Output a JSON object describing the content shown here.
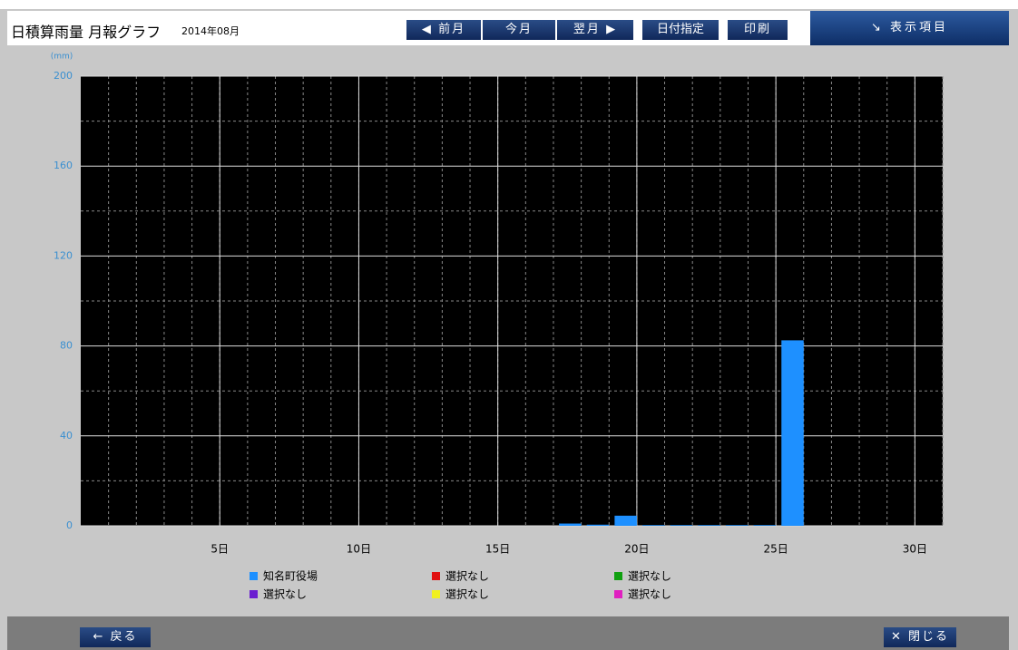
{
  "header": {
    "title": "日積算雨量 月報グラフ",
    "period": "2014年08月",
    "buttons": [
      "前月",
      "今月",
      "翌月",
      "日付指定",
      "印刷"
    ],
    "menu": "表示項目"
  },
  "chart_data": {
    "type": "bar",
    "y_unit": "(mm)",
    "x": [
      1,
      2,
      3,
      4,
      5,
      6,
      7,
      8,
      9,
      10,
      11,
      12,
      13,
      14,
      15,
      16,
      17,
      18,
      19,
      20,
      21,
      22,
      23,
      24,
      25,
      26,
      27,
      28,
      29,
      30,
      31
    ],
    "xlim": [
      0,
      31
    ],
    "xticks": [
      {
        "value": 5,
        "label": "5日"
      },
      {
        "value": 10,
        "label": "10日"
      },
      {
        "value": 15,
        "label": "15日"
      },
      {
        "value": 20,
        "label": "20日"
      },
      {
        "value": 25,
        "label": "25日"
      },
      {
        "value": 30,
        "label": "30日"
      }
    ],
    "ylim": [
      0,
      200
    ],
    "yticks": [
      0,
      40,
      80,
      120,
      160,
      200
    ],
    "yminor": [
      20,
      60,
      100,
      140,
      180
    ],
    "grid": true,
    "series": [
      {
        "name": "知名町役場",
        "color": "#1e90ff",
        "values": [
          0,
          0,
          0,
          0,
          0,
          0,
          0,
          0,
          0,
          0,
          0,
          0,
          0,
          0,
          0,
          0,
          1,
          0.5,
          4.5,
          0.3,
          0.3,
          0.3,
          0.3,
          0.3,
          82.5,
          0,
          0,
          0,
          0,
          0,
          0
        ]
      },
      {
        "name": "選択なし",
        "color": "#e01010",
        "values": [
          null,
          null,
          null,
          null,
          null,
          null,
          null,
          null,
          null,
          null,
          null,
          null,
          null,
          null,
          null,
          null,
          null,
          null,
          null,
          null,
          null,
          null,
          null,
          null,
          null,
          null,
          null,
          null,
          null,
          null,
          null
        ]
      },
      {
        "name": "選択なし",
        "color": "#10a010",
        "values": [
          null,
          null,
          null,
          null,
          null,
          null,
          null,
          null,
          null,
          null,
          null,
          null,
          null,
          null,
          null,
          null,
          null,
          null,
          null,
          null,
          null,
          null,
          null,
          null,
          null,
          null,
          null,
          null,
          null,
          null,
          null
        ]
      },
      {
        "name": "選択なし",
        "color": "#6a1ed0",
        "values": [
          null,
          null,
          null,
          null,
          null,
          null,
          null,
          null,
          null,
          null,
          null,
          null,
          null,
          null,
          null,
          null,
          null,
          null,
          null,
          null,
          null,
          null,
          null,
          null,
          null,
          null,
          null,
          null,
          null,
          null,
          null
        ]
      },
      {
        "name": "選択なし",
        "color": "#f0f020",
        "values": [
          null,
          null,
          null,
          null,
          null,
          null,
          null,
          null,
          null,
          null,
          null,
          null,
          null,
          null,
          null,
          null,
          null,
          null,
          null,
          null,
          null,
          null,
          null,
          null,
          null,
          null,
          null,
          null,
          null,
          null,
          null
        ]
      },
      {
        "name": "選択なし",
        "color": "#e020c0",
        "values": [
          null,
          null,
          null,
          null,
          null,
          null,
          null,
          null,
          null,
          null,
          null,
          null,
          null,
          null,
          null,
          null,
          null,
          null,
          null,
          null,
          null,
          null,
          null,
          null,
          null,
          null,
          null,
          null,
          null,
          null,
          null
        ]
      }
    ]
  },
  "footer": {
    "back": "戻る",
    "close": "閉じる"
  }
}
